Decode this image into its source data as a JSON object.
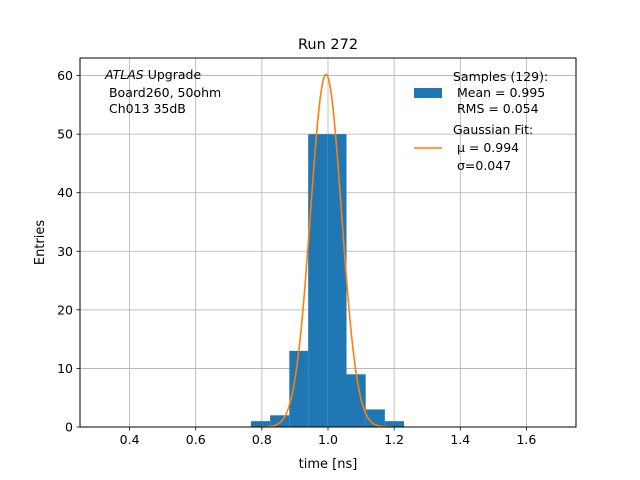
{
  "chart_data": {
    "type": "bar",
    "title": "Run 272",
    "xlabel": "time [ns]",
    "ylabel": "Entries",
    "xlim": [
      0.25,
      1.75
    ],
    "ylim": [
      0,
      63
    ],
    "grid": true,
    "xticks": [
      0.4,
      0.6,
      0.8,
      1.0,
      1.2,
      1.4,
      1.6
    ],
    "xtick_labels": [
      "0.4",
      "0.6",
      "0.8",
      "1.0",
      "1.2",
      "1.4",
      "1.6"
    ],
    "yticks": [
      0,
      10,
      20,
      30,
      40,
      50,
      60
    ],
    "ytick_labels": [
      "0",
      "10",
      "20",
      "30",
      "40",
      "50",
      "60"
    ],
    "histogram": {
      "bin_edges": [
        0.767,
        0.825,
        0.883,
        0.94,
        0.998,
        1.056,
        1.114,
        1.172,
        1.23
      ],
      "counts": [
        1,
        2,
        13,
        50,
        50,
        9,
        3,
        1
      ],
      "color": "#1f77b4"
    },
    "fit": {
      "mu": 0.994,
      "sigma": 0.047,
      "amplitude": 60.2,
      "color": "#ff7f0e"
    },
    "annotation_lines": [
      {
        "italic": "ATLAS",
        "rest": " Upgrade"
      },
      {
        "italic": "",
        "rest": " Board260, 50ohm"
      },
      {
        "italic": "",
        "rest": " Ch013 35dB"
      }
    ],
    "legend": {
      "position": "top-right",
      "samples_lines": [
        "Samples (129):",
        " Mean = 0.995",
        " RMS = 0.054"
      ],
      "fit_lines": [
        "Gaussian Fit:",
        " μ = 0.994",
        " σ=0.047"
      ]
    }
  }
}
